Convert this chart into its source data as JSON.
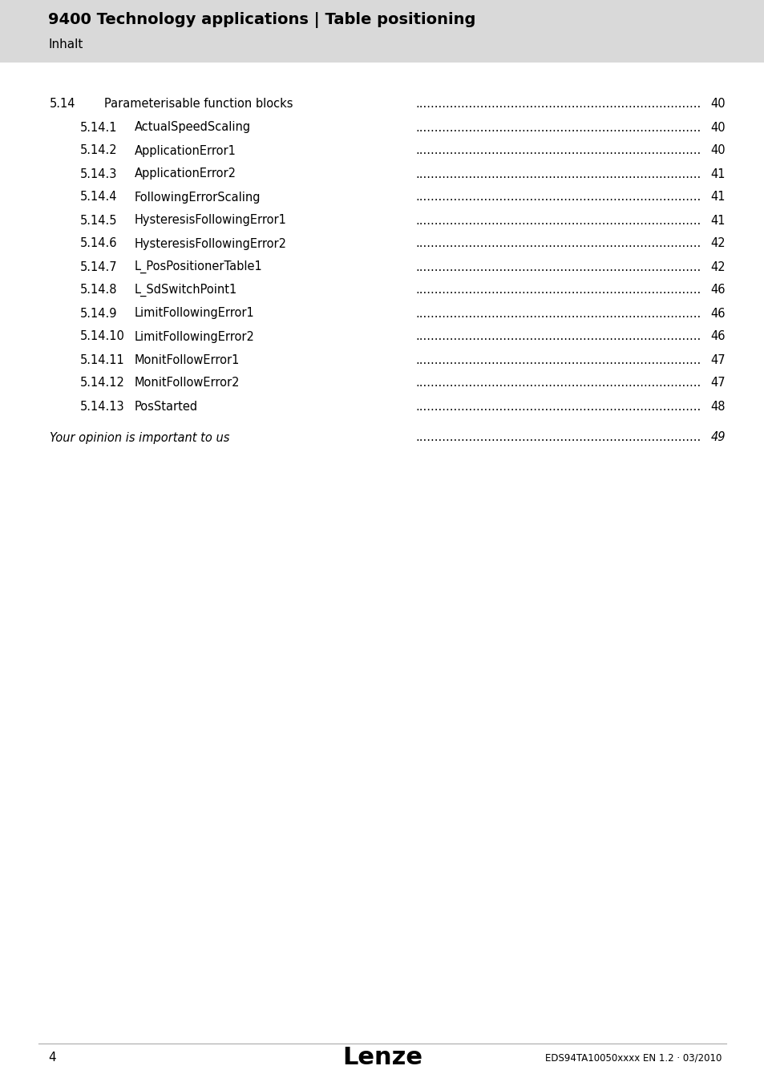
{
  "header_title": "9400 Technology applications | Table positioning",
  "header_subtitle": "Inhalt",
  "header_bg_color": "#d9d9d9",
  "page_bg_color": "#ffffff",
  "toc_entries": [
    {
      "number": "5.14",
      "indent": 0,
      "label": "Parameterisable function blocks",
      "page": "40"
    },
    {
      "number": "5.14.1",
      "indent": 1,
      "label": "ActualSpeedScaling",
      "page": "40"
    },
    {
      "number": "5.14.2",
      "indent": 1,
      "label": "ApplicationError1",
      "page": "40"
    },
    {
      "number": "5.14.3",
      "indent": 1,
      "label": "ApplicationError2",
      "page": "41"
    },
    {
      "number": "5.14.4",
      "indent": 1,
      "label": "FollowingErrorScaling",
      "page": "41"
    },
    {
      "number": "5.14.5",
      "indent": 1,
      "label": "HysteresisFollowingError1",
      "page": "41"
    },
    {
      "number": "5.14.6",
      "indent": 1,
      "label": "HysteresisFollowingError2",
      "page": "42"
    },
    {
      "number": "5.14.7",
      "indent": 1,
      "label": "L_PosPositionerTable1",
      "page": "42"
    },
    {
      "number": "5.14.8",
      "indent": 1,
      "label": "L_SdSwitchPoint1",
      "page": "46"
    },
    {
      "number": "5.14.9",
      "indent": 1,
      "label": "LimitFollowingError1",
      "page": "46"
    },
    {
      "number": "5.14.10",
      "indent": 1,
      "label": "LimitFollowingError2",
      "page": "46"
    },
    {
      "number": "5.14.11",
      "indent": 1,
      "label": "MonitFollowError1",
      "page": "47"
    },
    {
      "number": "5.14.12",
      "indent": 1,
      "label": "MonitFollowError2",
      "page": "47"
    },
    {
      "number": "5.14.13",
      "indent": 1,
      "label": "PosStarted",
      "page": "48"
    }
  ],
  "final_entry": {
    "label": "Your opinion is important to us",
    "page": "49",
    "italic": true
  },
  "footer_page": "4",
  "footer_logo": "Lenze",
  "footer_right": "EDS94TA10050xxxx EN 1.2 · 03/2010",
  "text_color": "#000000",
  "font_family": "DejaVu Sans"
}
